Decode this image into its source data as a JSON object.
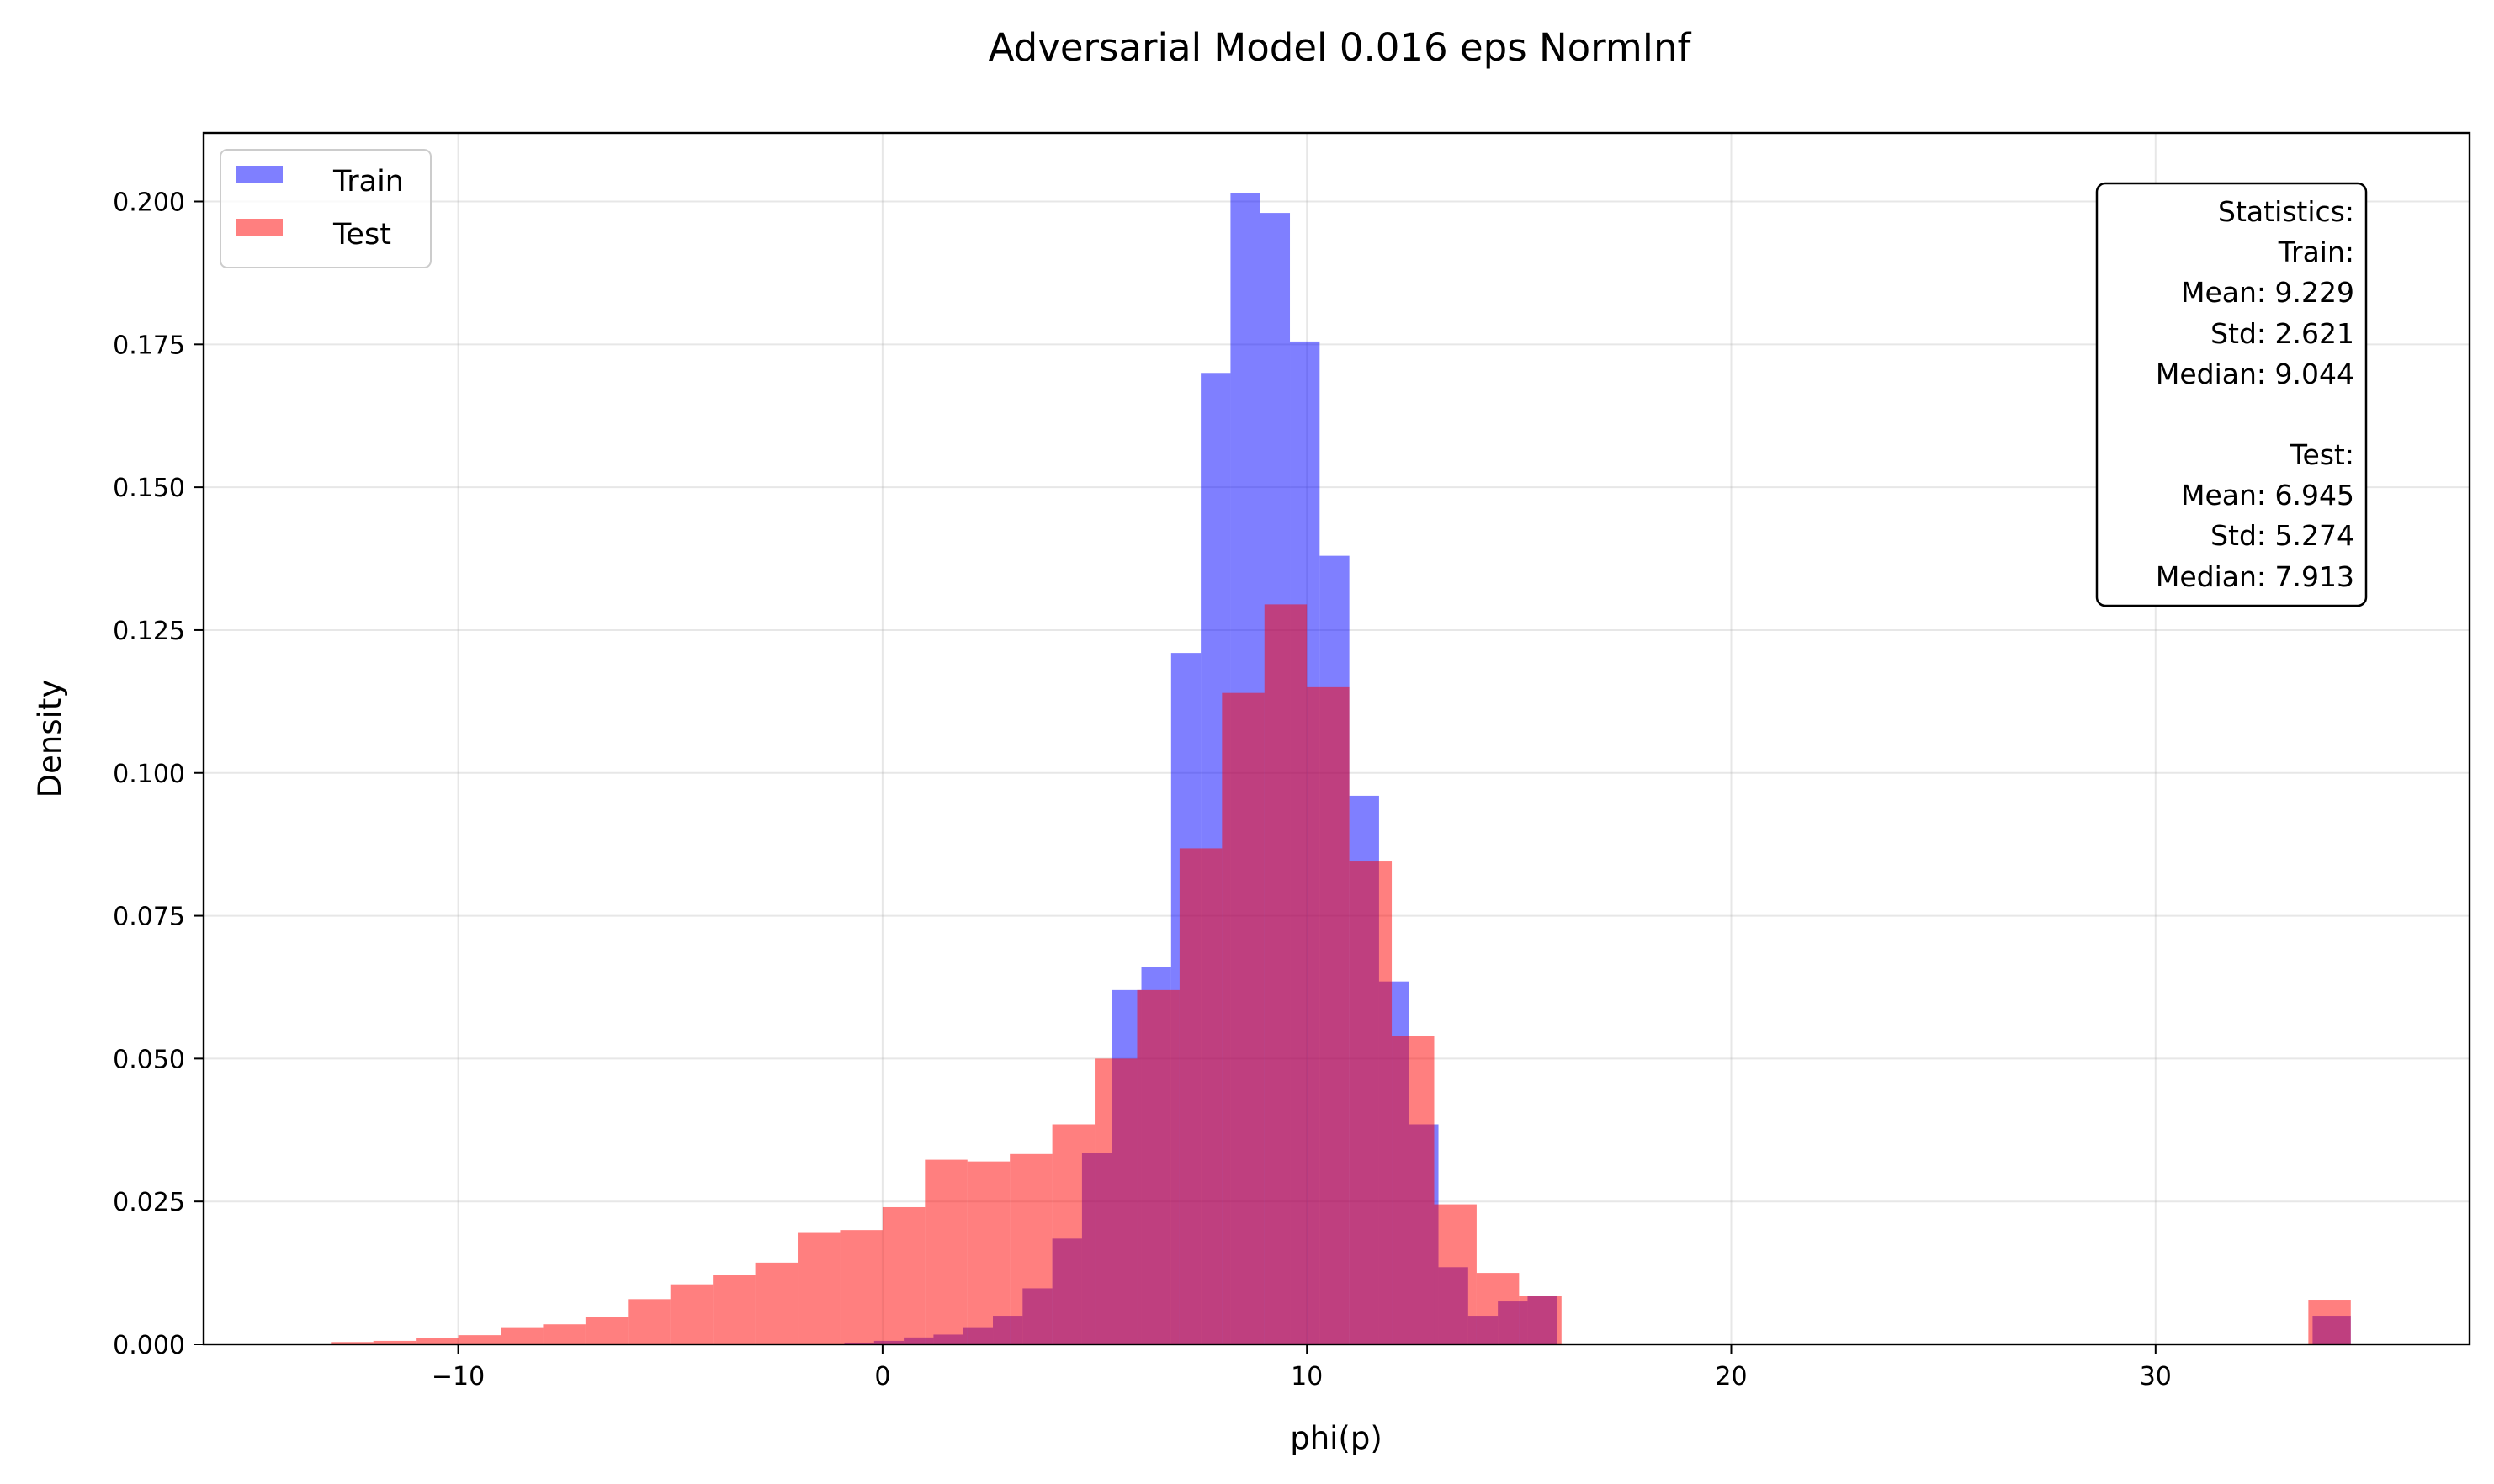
{
  "chart_data": {
    "type": "histogram",
    "title": "Adversarial Model 0.016 eps NormInf",
    "xlabel": "phi(p)",
    "ylabel": "Density",
    "xlim": [
      -16,
      37.4
    ],
    "ylim": [
      0,
      0.212
    ],
    "xticks": [
      -10,
      0,
      10,
      20,
      30
    ],
    "xtick_labels": [
      "−10",
      "0",
      "10",
      "20",
      "30"
    ],
    "yticks": [
      0,
      0.025,
      0.05,
      0.075,
      0.1,
      0.125,
      0.15,
      0.175,
      0.2
    ],
    "ytick_labels": [
      "0.000",
      "0.025",
      "0.050",
      "0.075",
      "0.100",
      "0.125",
      "0.150",
      "0.175",
      "0.200"
    ],
    "grid": true,
    "legend_position": "upper-left",
    "series": [
      {
        "name": "Train",
        "color": "#0000ff",
        "opacity": 0.5,
        "bin_edges": [
          -0.9,
          -0.2,
          0.5,
          1.2,
          1.9,
          2.6,
          3.3,
          4.0,
          4.7,
          5.4,
          6.1,
          6.8,
          7.5,
          8.2,
          8.9,
          9.6,
          10.3,
          11.0,
          11.7,
          12.4,
          13.1,
          13.8,
          14.5,
          15.2,
          15.9
        ],
        "values": [
          0.0003,
          0.0006,
          0.0012,
          0.0017,
          0.003,
          0.005,
          0.0098,
          0.0185,
          0.0335,
          0.062,
          0.066,
          0.121,
          0.17,
          0.2015,
          0.198,
          0.1755,
          0.138,
          0.096,
          0.0635,
          0.0385,
          0.0135,
          0.005,
          0.0075,
          0.0085
        ],
        "outlier_bins": [
          {
            "x0": 33.7,
            "x1": 34.6,
            "value": 0.005
          }
        ]
      },
      {
        "name": "Test",
        "color": "#ff0000",
        "opacity": 0.5,
        "bin_edges": [
          -13.0,
          -12.0,
          -11.0,
          -10.0,
          -9.0,
          -8.0,
          -7.0,
          -6.0,
          -5.0,
          -4.0,
          -3.0,
          -2.0,
          -1.0,
          0.0,
          1.0,
          2.0,
          3.0,
          4.0,
          5.0,
          6.0,
          7.0,
          8.0,
          9.0,
          10.0,
          11.0,
          12.0,
          13.0,
          14.0,
          15.0,
          16.0
        ],
        "values": [
          0.0004,
          0.0006,
          0.0011,
          0.0016,
          0.003,
          0.0035,
          0.0048,
          0.0079,
          0.0105,
          0.0122,
          0.0143,
          0.0195,
          0.02,
          0.024,
          0.0323,
          0.032,
          0.0333,
          0.0385,
          0.05,
          0.062,
          0.0868,
          0.114,
          0.1295,
          0.115,
          0.0845,
          0.054,
          0.0245,
          0.0125,
          0.0085
        ],
        "outlier_bins": [
          {
            "x0": 33.6,
            "x1": 34.6,
            "value": 0.0078
          }
        ]
      }
    ],
    "statistics_box": {
      "lines": [
        "Statistics:",
        "Train:",
        "Mean: 9.229",
        "Std: 2.621",
        "Median: 9.044",
        "",
        "Test:",
        "Mean: 6.945",
        "Std: 5.274",
        "Median: 7.913"
      ]
    }
  }
}
